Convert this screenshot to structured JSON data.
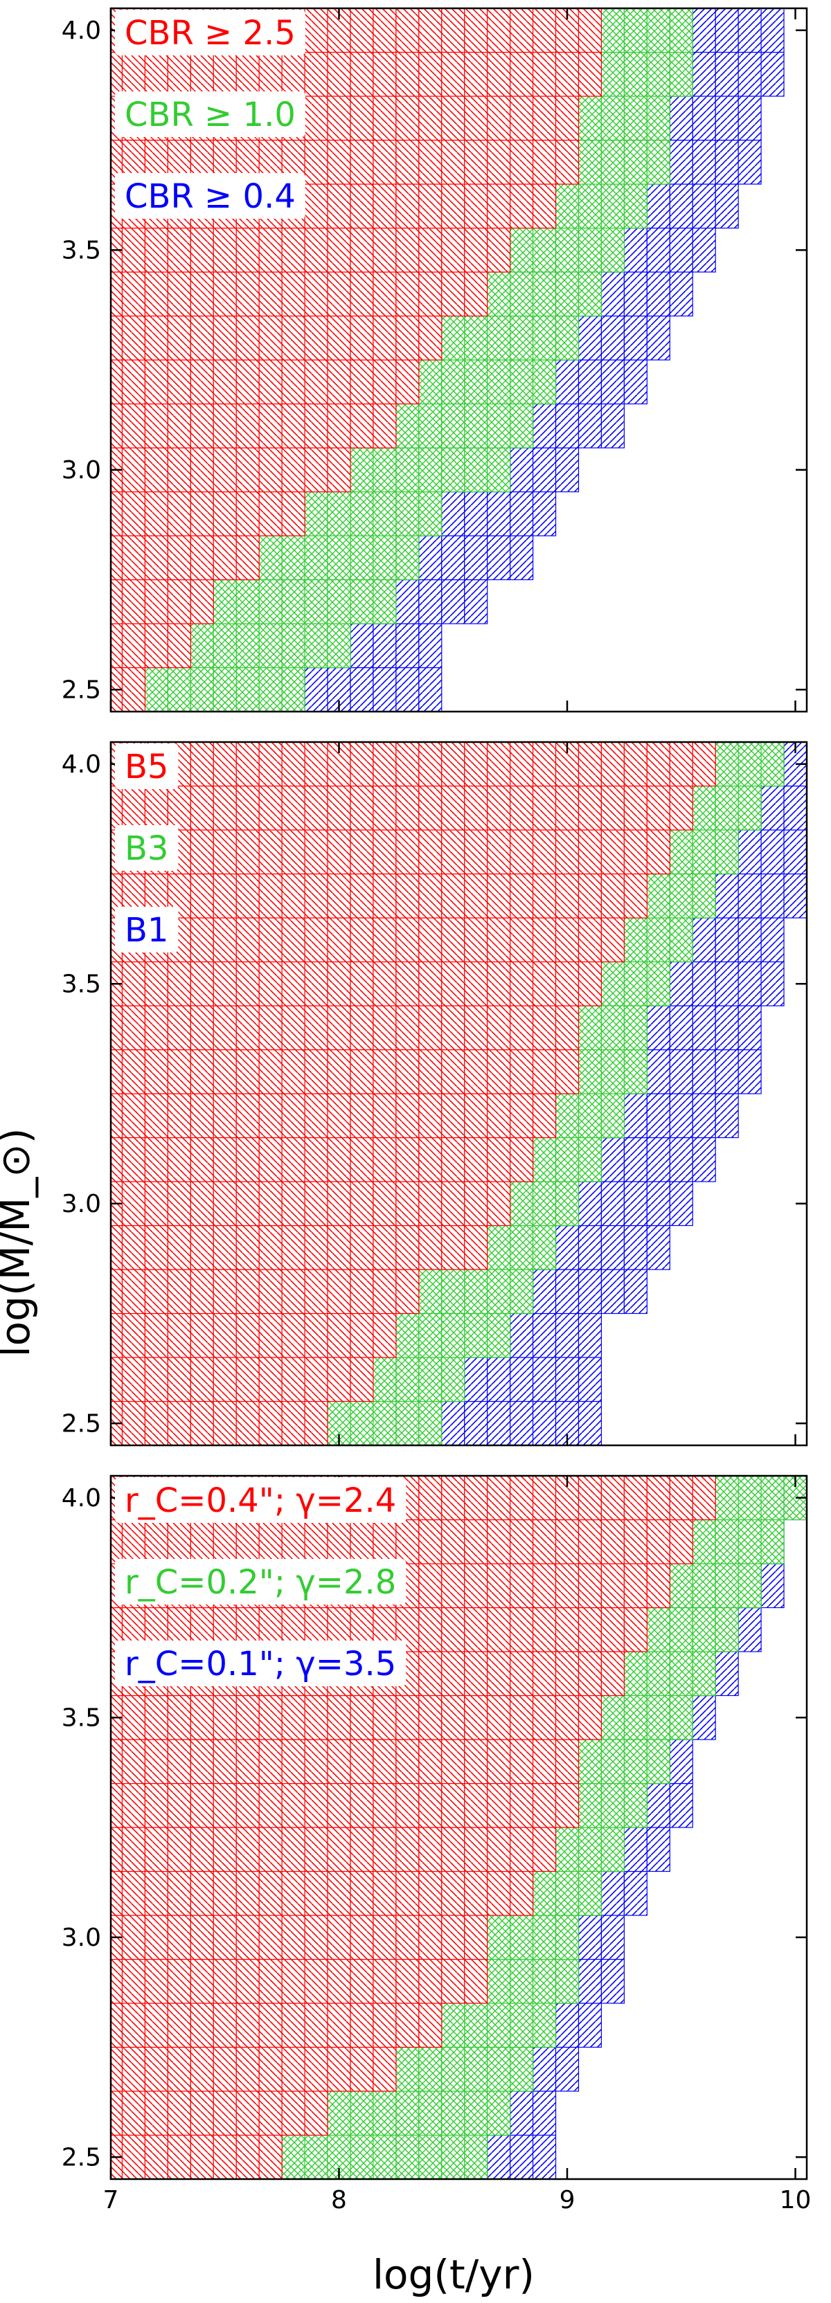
{
  "colors": {
    "red": "#ff0000",
    "green": "#33cc33",
    "blue": "#0000ff",
    "axis": "#000000"
  },
  "chart_data": {
    "type": "heatmap",
    "xlabel": "log(t/yr)",
    "ylabel": "log(M/M_⊙)",
    "xlim": [
      7.0,
      10.05
    ],
    "ylim": [
      2.45,
      4.05
    ],
    "xticks": [
      7,
      8,
      9,
      10
    ],
    "yticks": [
      "2.5",
      "3.0",
      "3.5",
      "4.0"
    ],
    "grid": false,
    "legend_placement": "top-left",
    "panels": [
      {
        "legend": [
          "CBR ≥ 2.5",
          "CBR ≥ 1.0",
          "CBR ≥ 0.4"
        ],
        "series": [
          {
            "name": "CBR ≥ 2.5",
            "color": "red",
            "hatch": "back-diagonal",
            "x_end_by_mass": [
              7.1,
              7.3,
              7.4,
              7.6,
              7.8,
              8.0,
              8.2,
              8.3,
              8.4,
              8.6,
              8.7,
              8.9,
              9.0,
              9.0,
              9.1,
              9.1
            ]
          },
          {
            "name": "CBR ≥ 1.0",
            "color": "green",
            "hatch": "cross",
            "x_end_by_mass": [
              7.8,
              8.0,
              8.2,
              8.3,
              8.4,
              8.7,
              8.8,
              8.9,
              9.0,
              9.1,
              9.2,
              9.3,
              9.4,
              9.4,
              9.5,
              9.5
            ]
          },
          {
            "name": "CBR ≥ 0.4",
            "color": "blue",
            "hatch": "diagonal",
            "x_end_by_mass": [
              8.4,
              8.4,
              8.6,
              8.8,
              8.9,
              9.0,
              9.2,
              9.3,
              9.4,
              9.5,
              9.6,
              9.7,
              9.8,
              9.8,
              9.9,
              9.9
            ]
          }
        ]
      },
      {
        "legend": [
          "B5",
          "B3",
          "B1"
        ],
        "series": [
          {
            "name": "B5",
            "color": "red",
            "hatch": "back-diagonal",
            "x_end_by_mass": [
              7.9,
              8.1,
              8.2,
              8.3,
              8.6,
              8.7,
              8.8,
              8.9,
              9.0,
              9.0,
              9.1,
              9.2,
              9.3,
              9.4,
              9.5,
              9.6
            ]
          },
          {
            "name": "B3",
            "color": "green",
            "hatch": "cross",
            "x_end_by_mass": [
              8.4,
              8.5,
              8.7,
              8.8,
              8.9,
              9.0,
              9.1,
              9.2,
              9.3,
              9.3,
              9.4,
              9.5,
              9.6,
              9.7,
              9.8,
              9.9
            ]
          },
          {
            "name": "B1",
            "color": "blue",
            "hatch": "diagonal",
            "x_end_by_mass": [
              9.1,
              9.1,
              9.1,
              9.3,
              9.4,
              9.5,
              9.6,
              9.7,
              9.8,
              9.8,
              9.9,
              9.9,
              10.0,
              10.0,
              10.0,
              10.0
            ]
          }
        ]
      },
      {
        "legend": [
          "r_C=0.4\"; γ=2.4",
          "r_C=0.2\"; γ=2.8",
          "r_C=0.1\"; γ=3.5"
        ],
        "series": [
          {
            "name": "r_C=0.4\"; γ=2.4",
            "color": "red",
            "hatch": "back-diagonal",
            "x_end_by_mass": [
              7.7,
              7.9,
              8.2,
              8.4,
              8.6,
              8.6,
              8.8,
              8.9,
              9.0,
              9.0,
              9.1,
              9.2,
              9.3,
              9.4,
              9.5,
              9.6
            ]
          },
          {
            "name": "r_C=0.2\"; γ=2.8",
            "color": "green",
            "hatch": "cross",
            "x_end_by_mass": [
              8.6,
              8.7,
              8.8,
              8.9,
              9.0,
              9.0,
              9.1,
              9.2,
              9.3,
              9.4,
              9.5,
              9.6,
              9.7,
              9.8,
              9.9,
              10.0
            ]
          },
          {
            "name": "r_C=0.1\"; γ=3.5",
            "color": "blue",
            "hatch": "diagonal",
            "x_end_by_mass": [
              8.9,
              8.9,
              9.0,
              9.1,
              9.2,
              9.2,
              9.3,
              9.4,
              9.5,
              9.5,
              9.6,
              9.7,
              9.8,
              9.9,
              9.9,
              10.0
            ]
          }
        ]
      }
    ]
  }
}
